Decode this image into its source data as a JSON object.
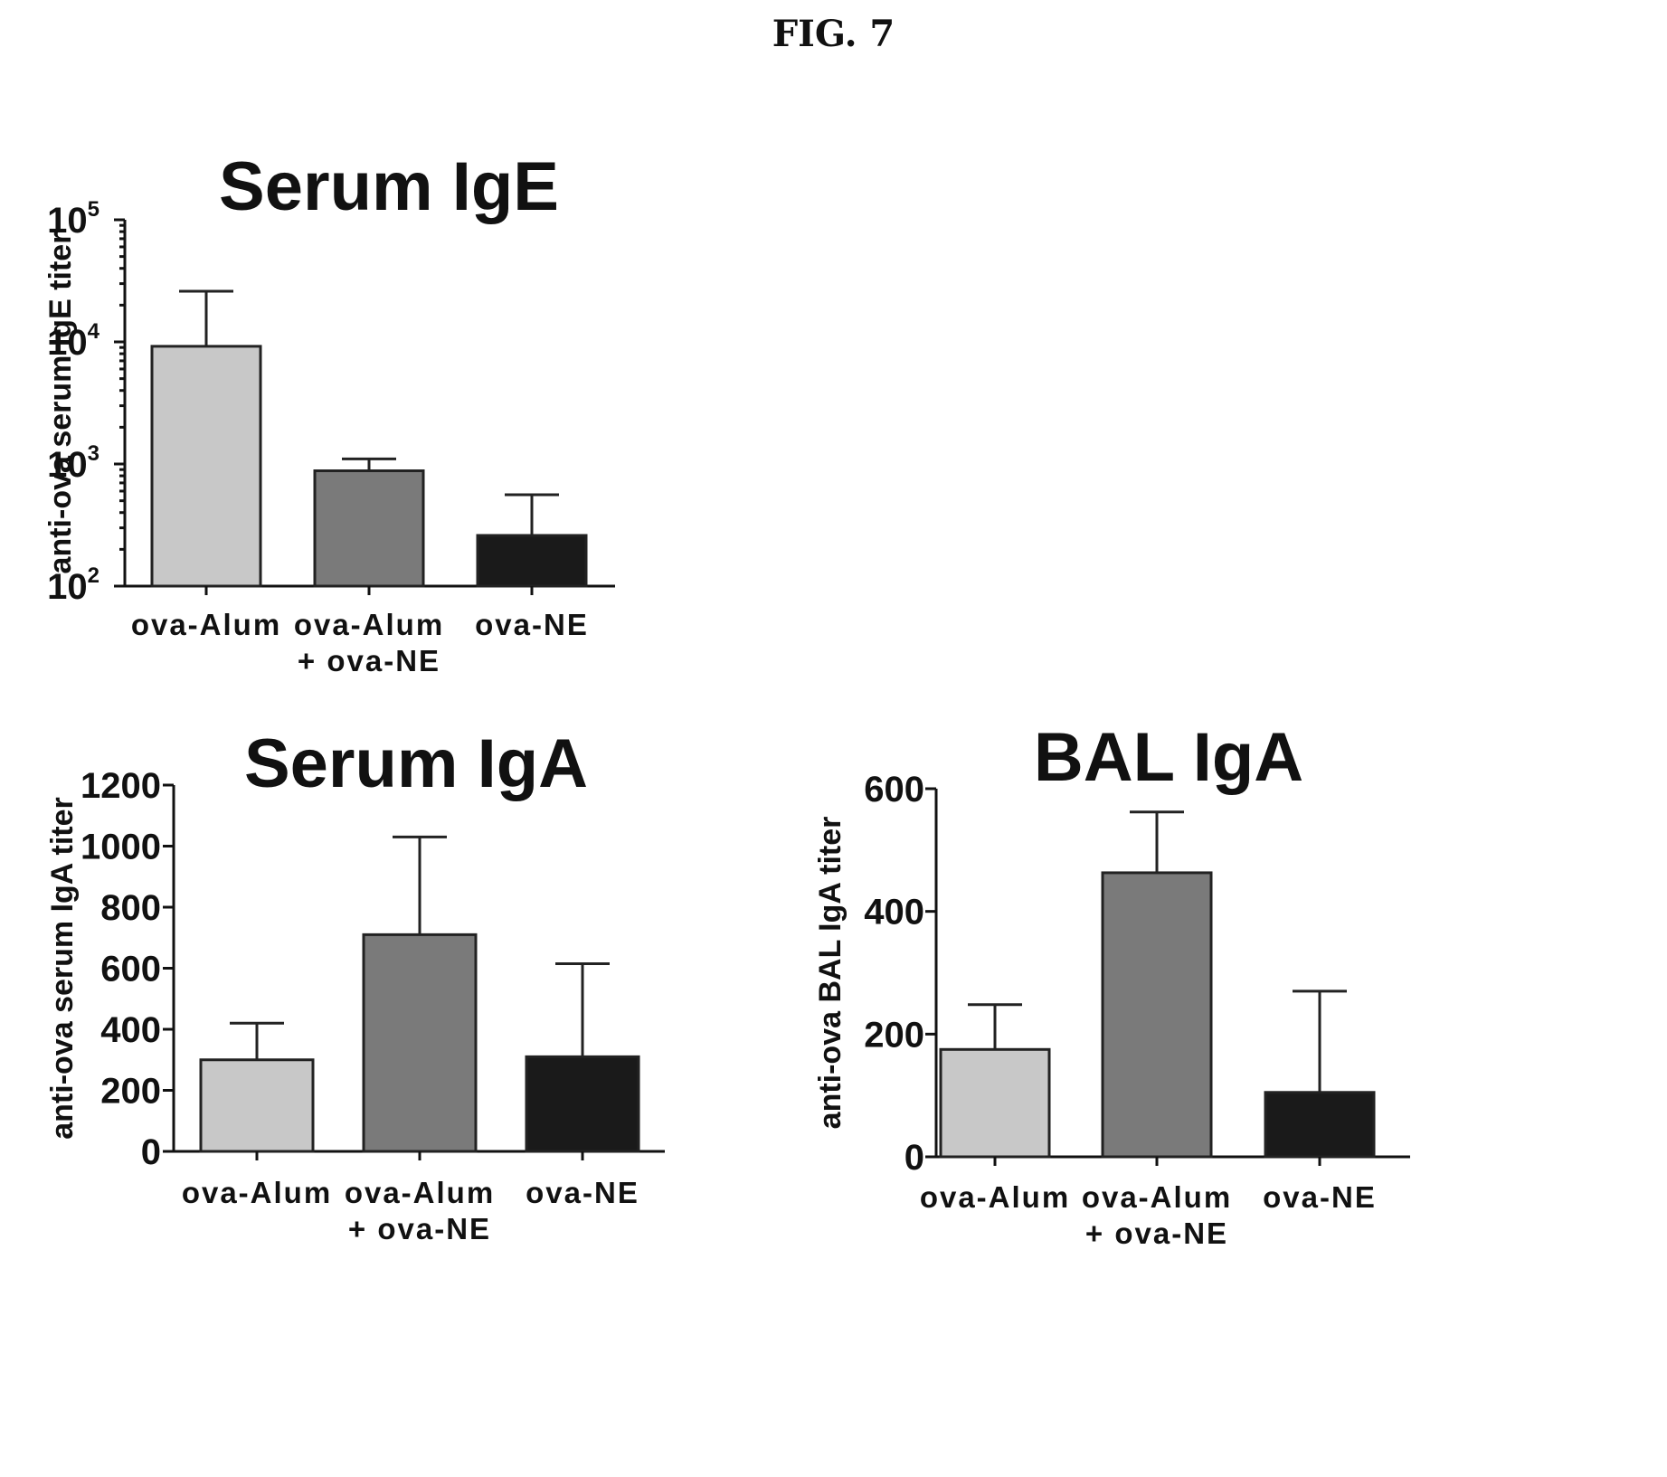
{
  "figure_title": "FIG. 7",
  "chart_data": [
    {
      "type": "bar",
      "title": "Serum IgE",
      "ylabel": "anti-ova serum IgE titer",
      "xlabel": "",
      "yscale": "log",
      "ylim": [
        100,
        100000
      ],
      "yticks": [
        {
          "base": "10",
          "exp": "2",
          "value": 100
        },
        {
          "base": "10",
          "exp": "3",
          "value": 1000
        },
        {
          "base": "10",
          "exp": "4",
          "value": 10000
        },
        {
          "base": "10",
          "exp": "5",
          "value": 100000
        }
      ],
      "categories": [
        [
          "ova-Alum"
        ],
        [
          "ova-Alum",
          "+ ova-NE"
        ],
        [
          "ova-NE"
        ]
      ],
      "values": [
        9200,
        880,
        260
      ],
      "error_upper": [
        26000,
        1100,
        560
      ],
      "colors": [
        "#c8c8c8",
        "#7a7a7a",
        "#1a1a1a"
      ],
      "grid": false
    },
    {
      "type": "bar",
      "title": "Serum IgA",
      "ylabel": "anti-ova serum IgA titer",
      "xlabel": "",
      "yscale": "linear",
      "ylim": [
        0,
        1200
      ],
      "yticks": [
        {
          "label": "0",
          "value": 0
        },
        {
          "label": "200",
          "value": 200
        },
        {
          "label": "400",
          "value": 400
        },
        {
          "label": "600",
          "value": 600
        },
        {
          "label": "800",
          "value": 800
        },
        {
          "label": "1000",
          "value": 1000
        },
        {
          "label": "1200",
          "value": 1200
        }
      ],
      "categories": [
        [
          "ova-Alum"
        ],
        [
          "ova-Alum",
          "+ ova-NE"
        ],
        [
          "ova-NE"
        ]
      ],
      "values": [
        300,
        710,
        310
      ],
      "error_upper": [
        420,
        1030,
        615
      ],
      "colors": [
        "#c8c8c8",
        "#7a7a7a",
        "#1a1a1a"
      ],
      "grid": false
    },
    {
      "type": "bar",
      "title": "BAL IgA",
      "ylabel": "anti-ova BAL IgA titer",
      "xlabel": "",
      "yscale": "linear",
      "ylim": [
        0,
        600
      ],
      "yticks": [
        {
          "label": "0",
          "value": 0
        },
        {
          "label": "200",
          "value": 200
        },
        {
          "label": "400",
          "value": 400
        },
        {
          "label": "600",
          "value": 600
        }
      ],
      "categories": [
        [
          "ova-Alum"
        ],
        [
          "ova-Alum",
          "+ ova-NE"
        ],
        [
          "ova-NE"
        ]
      ],
      "values": [
        175,
        463,
        105
      ],
      "error_upper": [
        248,
        562,
        270
      ],
      "colors": [
        "#c8c8c8",
        "#7a7a7a",
        "#1a1a1a"
      ],
      "grid": false
    }
  ]
}
